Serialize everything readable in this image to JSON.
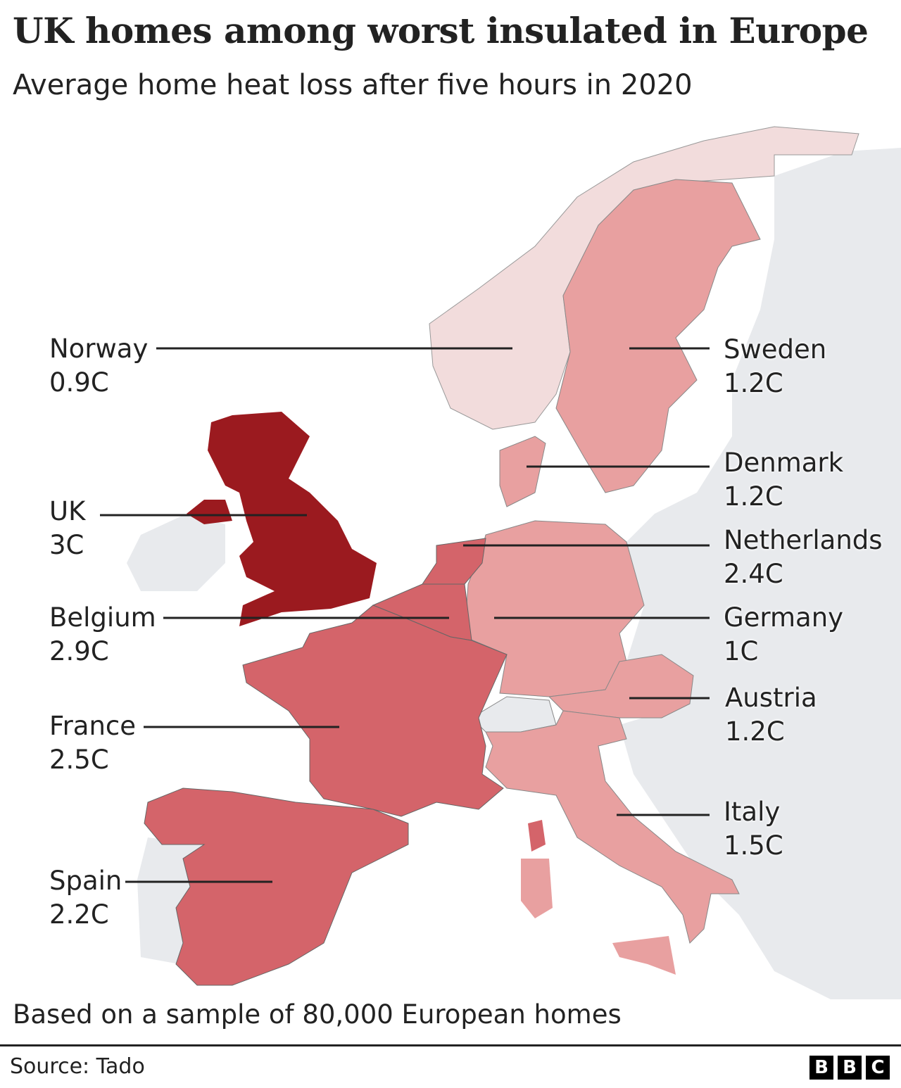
{
  "title": "UK homes among worst insulated in Europe",
  "subtitle": "Average home heat loss after five hours in 2020",
  "note": "Based on a sample of 80,000 European homes",
  "source": "Source: Tado",
  "logo": "BBC",
  "colors": {
    "highest": "#9b1a1f",
    "high": "#d4646a",
    "medium": "#e8a0a0",
    "low": "#f2dcdc",
    "no_data": "#e8eaed"
  },
  "countries": [
    {
      "name": "Norway",
      "value": "0.9C"
    },
    {
      "name": "UK",
      "value": "3C"
    },
    {
      "name": "Belgium",
      "value": "2.9C"
    },
    {
      "name": "France",
      "value": "2.5C"
    },
    {
      "name": "Spain",
      "value": "2.2C"
    },
    {
      "name": "Sweden",
      "value": "1.2C"
    },
    {
      "name": "Denmark",
      "value": "1.2C"
    },
    {
      "name": "Netherlands",
      "value": "2.4C"
    },
    {
      "name": "Germany",
      "value": "1C"
    },
    {
      "name": "Austria",
      "value": "1.2C"
    },
    {
      "name": "Italy",
      "value": "1.5C"
    }
  ]
}
